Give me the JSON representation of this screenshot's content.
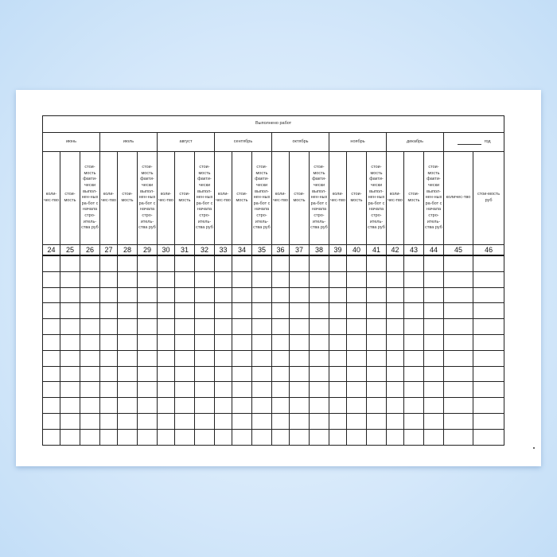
{
  "title": "Выполнено работ",
  "months": [
    "июнь",
    "июль",
    "август",
    "сентябрь",
    "октябрь",
    "ноябрь",
    "декабрь"
  ],
  "year_label": "год",
  "sub_headers": {
    "qty": "коли-чес-тво",
    "cost": "стои-мость",
    "actual": "стои-мость факти-чески выпол-нен-ных ра-бот с начала стро-итель-ства руб",
    "year_qty": "количес-тво",
    "year_cost": "стои-мость руб"
  },
  "column_numbers": [
    "24",
    "25",
    "26",
    "27",
    "28",
    "29",
    "30",
    "31",
    "32",
    "33",
    "34",
    "35",
    "36",
    "37",
    "38",
    "39",
    "40",
    "41",
    "42",
    "43",
    "44",
    "45",
    "46"
  ],
  "data_row_count": 12
}
